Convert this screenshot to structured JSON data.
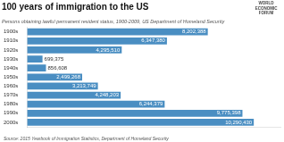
{
  "chart_data": {
    "type": "bar",
    "orientation": "horizontal",
    "title": "100 years of immigration to the US",
    "subtitle": "Persons obtaining lawful permanent resident status, 1900-2009, US Department of Homeland Security",
    "annotations": [
      "Source: 2015 Yearbook of Immigration Statistics, Department of Homeland Security",
      "WORLD\nECONOMIC\nFORUM"
    ],
    "categories": [
      "1900s",
      "1910s",
      "1920s",
      "1930s",
      "1940s",
      "1950s",
      "1960s",
      "1970s",
      "1980s",
      "1990s",
      "2000s"
    ],
    "values": [
      8202388,
      6347380,
      4295510,
      699375,
      856608,
      2499268,
      3213749,
      4248203,
      6244379,
      9775398,
      10290430
    ],
    "value_labels": [
      "8,202,388",
      "6,347,380",
      "4,295,510",
      "699,375",
      "856,608",
      "2,499,268",
      "3,213,749",
      "4,248,203",
      "6,244,379",
      "9,775,398",
      "10,290,430"
    ],
    "color": "#4a8ec2",
    "xlim": [
      0,
      11500000
    ],
    "grid": false,
    "data_labels": true,
    "tick_labels": "y"
  }
}
